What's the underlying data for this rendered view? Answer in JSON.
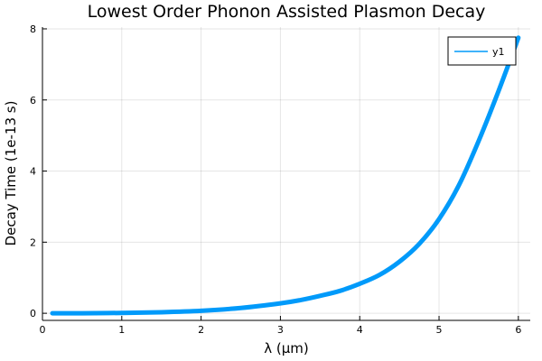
{
  "chart_data": {
    "type": "line",
    "title": "Lowest Order Phonon Assisted Plasmon Decay",
    "xlabel": "λ (μm)",
    "ylabel": "Decay Time (1e-13 s)",
    "xlim": [
      0,
      6.15
    ],
    "ylim": [
      -0.2,
      8.05
    ],
    "xticks": [
      0,
      1,
      2,
      3,
      4,
      5,
      6
    ],
    "yticks": [
      0,
      2,
      4,
      6,
      8
    ],
    "grid": true,
    "legend_position": "top-right",
    "series": [
      {
        "name": "y1",
        "color": "#009AFA",
        "x": [
          0.125,
          0.5,
          1.0,
          1.5,
          2.0,
          2.5,
          3.0,
          3.25,
          3.5,
          3.75,
          4.0,
          4.25,
          4.5,
          4.75,
          5.0,
          5.25,
          5.5,
          5.75,
          6.0
        ],
        "y": [
          0.0,
          0.0,
          0.01,
          0.03,
          0.07,
          0.15,
          0.28,
          0.37,
          0.49,
          0.63,
          0.83,
          1.08,
          1.45,
          1.95,
          2.65,
          3.6,
          4.85,
          6.25,
          7.75
        ]
      }
    ]
  }
}
